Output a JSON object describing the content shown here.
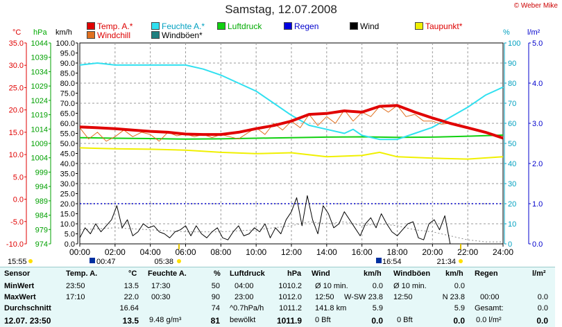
{
  "title": "Samstag, 12.07.2008",
  "copyright": "© Weber Mike",
  "legend": [
    {
      "label": "Temp. A.*",
      "color": "#e00000",
      "cls": "red-text"
    },
    {
      "label": "Windchill",
      "color": "#e07020",
      "cls": "red-text"
    },
    {
      "label": "Feuchte A.*",
      "color": "#30e0f0",
      "cls": "cyan-text"
    },
    {
      "label": "Windböen*",
      "color": "#208080",
      "cls": ""
    },
    {
      "label": "Luftdruck",
      "color": "#10d010",
      "cls": "green-text"
    },
    {
      "label": "Regen",
      "color": "#0000e0",
      "cls": "blue-text"
    },
    {
      "label": "Wind",
      "color": "#000000",
      "cls": ""
    },
    {
      "label": "Taupunkt*",
      "color": "#f0f000",
      "cls": "red-text"
    }
  ],
  "units": {
    "temp": "°C",
    "press": "hPa",
    "wind": "km/h",
    "hum": "%",
    "rain": "l/m²"
  },
  "chart_data": {
    "type": "line",
    "title": "Samstag, 12.07.2008",
    "x_ticks": [
      "00:00",
      "02:00",
      "04:00",
      "06:00",
      "08:00",
      "10:00",
      "12:00",
      "14:00",
      "16:00",
      "18:00",
      "20:00",
      "22:00",
      "24:00"
    ],
    "axes": {
      "temp": {
        "min": -10,
        "max": 35,
        "ticks": [
          "35.0",
          "30.0",
          "25.0",
          "20.0",
          "15.0",
          "10.0",
          "5.0",
          "0.0",
          "-5.0",
          "-10.0"
        ]
      },
      "press": {
        "min": 974,
        "max": 1044,
        "ticks": [
          "1044",
          "1039",
          "1034",
          "1029",
          "1024",
          "1019",
          "1014",
          "1009",
          "1004",
          "999",
          "994",
          "989",
          "984",
          "979",
          "974"
        ]
      },
      "wind": {
        "min": 0,
        "max": 100,
        "ticks": [
          "100.0",
          "95.0",
          "90.0",
          "85.0",
          "80.0",
          "75.0",
          "70.0",
          "65.0",
          "60.0",
          "55.0",
          "50.0",
          "45.0",
          "40.0",
          "35.0",
          "30.0",
          "25.0",
          "20.0",
          "15.0",
          "10.0",
          "5.0",
          "0.0"
        ]
      },
      "hum": {
        "min": 0,
        "max": 100,
        "ticks": [
          "100",
          "90",
          "80",
          "70",
          "60",
          "50",
          "40",
          "30",
          "20",
          "10",
          "0"
        ]
      },
      "rain": {
        "min": 0,
        "max": 5,
        "ticks": [
          "5.0",
          "4.0",
          "3.0",
          "2.0",
          "1.0",
          "0.0"
        ]
      }
    },
    "series": [
      {
        "name": "Temp. A.*",
        "axis": "temp",
        "color": "#e00000",
        "width": 4,
        "x": [
          0,
          1,
          2,
          3,
          4,
          5,
          6,
          7,
          8,
          9,
          10,
          11,
          12,
          13,
          14,
          15,
          16,
          17,
          18,
          19,
          20,
          21,
          22,
          23,
          24
        ],
        "y": [
          16.2,
          16.0,
          15.8,
          15.5,
          15.2,
          15.0,
          14.6,
          14.5,
          14.5,
          15.0,
          15.8,
          16.5,
          17.5,
          19.0,
          19.2,
          19.8,
          19.5,
          20.8,
          21.0,
          19.5,
          18.2,
          17.0,
          16.0,
          15.0,
          13.7
        ]
      },
      {
        "name": "Windchill",
        "axis": "temp",
        "color": "#e07020",
        "width": 1,
        "x": [
          0,
          0.5,
          1,
          1.5,
          2,
          2.5,
          3,
          3.5,
          4,
          4.5,
          5,
          5.5,
          6,
          6.5,
          7,
          7.5,
          8,
          8.5,
          9,
          9.5,
          10,
          10.5,
          11,
          11.5,
          12,
          12.5,
          13,
          13.5,
          14,
          14.5,
          15,
          15.5,
          16,
          16.5,
          17,
          17.5,
          18,
          18.5,
          19,
          19.5,
          20,
          20.5,
          21,
          21.5,
          22,
          22.5,
          23,
          23.5,
          24
        ],
        "y": [
          16,
          13.5,
          15,
          13,
          14,
          15.5,
          14,
          15,
          14.5,
          13,
          15,
          14.2,
          14.6,
          14,
          14.5,
          13.8,
          14.5,
          14,
          13.5,
          14.8,
          16,
          14.5,
          17,
          15.5,
          17.5,
          16,
          19,
          16.5,
          18.5,
          17,
          20,
          17.5,
          19.5,
          18.5,
          20.8,
          19.5,
          21,
          18.5,
          19,
          17.5,
          17.5,
          16.8,
          17,
          16.5,
          16,
          15.5,
          15,
          14.5,
          13.7
        ]
      },
      {
        "name": "Feuchte A.*",
        "axis": "hum",
        "color": "#30e0f0",
        "width": 2,
        "x": [
          0,
          1,
          2,
          3,
          4,
          5,
          6,
          7,
          8,
          9,
          10,
          11,
          12,
          13,
          14,
          15,
          15.5,
          16,
          17,
          18,
          19,
          20,
          21,
          22,
          23,
          24
        ],
        "y": [
          89,
          90,
          89,
          89,
          89,
          89,
          89,
          87,
          84,
          80,
          76,
          70,
          64,
          59,
          57,
          55,
          57,
          54,
          52,
          52,
          55,
          58,
          63,
          68,
          74,
          78
        ]
      },
      {
        "name": "Luftdruck",
        "axis": "press",
        "color": "#10d010",
        "width": 2,
        "x": [
          0,
          2,
          4,
          6,
          8,
          10,
          12,
          14,
          16,
          18,
          20,
          22,
          24
        ],
        "y": [
          1011,
          1010.8,
          1010.7,
          1010.5,
          1010.6,
          1010.8,
          1011,
          1011.2,
          1011.3,
          1011.1,
          1011.2,
          1011.5,
          1011.9
        ]
      },
      {
        "name": "Taupunkt*",
        "axis": "temp",
        "color": "#f0f000",
        "width": 2,
        "x": [
          0,
          2,
          4,
          6,
          8,
          10,
          12,
          14,
          16,
          17,
          18,
          20,
          22,
          24
        ],
        "y": [
          11.5,
          11.3,
          11.2,
          11.0,
          10.5,
          10.2,
          10.4,
          9.5,
          9.8,
          10.5,
          9.5,
          9.2,
          9.0,
          9.5
        ]
      },
      {
        "name": "Wind",
        "axis": "wind",
        "color": "#000000",
        "width": 1,
        "x": [
          0,
          0.3,
          0.6,
          0.9,
          1.2,
          1.5,
          1.8,
          2.1,
          2.4,
          2.7,
          3,
          3.3,
          3.6,
          3.9,
          4.2,
          4.5,
          4.8,
          5.1,
          5.4,
          5.7,
          6,
          6.3,
          6.6,
          6.9,
          7.2,
          7.5,
          7.8,
          8.1,
          8.4,
          8.7,
          9,
          9.3,
          9.6,
          9.9,
          10.2,
          10.5,
          10.8,
          11.1,
          11.4,
          11.7,
          12,
          12.3,
          12.6,
          12.9,
          13.2,
          13.5,
          13.8,
          14.1,
          14.4,
          14.7,
          15,
          15.3,
          15.6,
          15.9,
          16.2,
          16.5,
          16.8,
          17.1,
          17.4,
          17.7,
          18,
          18.3,
          18.6,
          18.9,
          19.2,
          19.5,
          19.8,
          20.1,
          20.4,
          20.7,
          21,
          22,
          23,
          24
        ],
        "y": [
          3,
          8,
          5,
          10,
          6,
          9,
          12,
          19,
          8,
          12,
          4,
          6,
          10,
          8,
          9,
          6,
          5,
          3,
          6,
          7,
          9,
          4,
          9,
          5,
          3,
          6,
          8,
          3,
          2,
          6,
          9,
          4,
          5,
          8,
          6,
          10,
          3,
          8,
          5,
          12,
          16,
          23,
          9,
          24,
          12,
          5,
          19,
          15,
          8,
          10,
          16,
          12,
          8,
          4,
          10,
          13,
          8,
          15,
          10,
          6,
          4,
          7,
          10,
          11,
          3,
          2,
          10,
          12,
          7,
          14,
          0,
          0,
          0,
          0
        ]
      },
      {
        "name": "Windböen*",
        "axis": "wind",
        "color": "#888888",
        "width": 1,
        "dash": true,
        "x": [
          0,
          2,
          4,
          6,
          8,
          10,
          12,
          13,
          14,
          15,
          16,
          17,
          18,
          19,
          20,
          21,
          22,
          23,
          24
        ],
        "y": [
          7,
          8,
          7,
          6,
          6,
          7,
          9,
          11,
          10,
          11,
          9,
          10,
          9,
          7,
          6,
          4,
          2,
          1,
          1
        ]
      }
    ],
    "rain_line": {
      "y": 1.0
    }
  },
  "events": {
    "sunrise_label": "05:38",
    "sunset_label": "21:34",
    "moon_rise": "00:47",
    "moon_set": "16:54",
    "left_time": "15:55"
  },
  "table": {
    "headers": [
      "Sensor",
      "Temp. A.",
      "°C",
      "Feuchte A.",
      "%",
      "Luftdruck",
      "hPa",
      "Wind",
      "km/h",
      "Windböen",
      "km/h",
      "Regen",
      "l/m²"
    ],
    "rows": [
      {
        "label": "MinWert",
        "c1": "23:50",
        "c2": "13.5",
        "c3": "17:30",
        "c4": "50",
        "c5": "04:00",
        "c6": "1010.2",
        "c7": "Ø 10 min.",
        "c8": "0.0",
        "c9": "Ø 10 min.",
        "c10": "0.0",
        "c11": "",
        "c12": ""
      },
      {
        "label": "MaxWert",
        "c1": "17:10",
        "c2": "22.0",
        "c3": "00:30",
        "c4": "90",
        "c5": "23:00",
        "c6": "1012.0",
        "c7": "12:50",
        "c7b": "W-SW 23.8",
        "c8": "",
        "c9": "12:50",
        "c9b": "N 23.8",
        "c10": "",
        "c11": "00:00",
        "c12": "0.0"
      },
      {
        "label": "Durchschnitt",
        "c1": "",
        "c2": "16.64",
        "c3": "",
        "c4": "74",
        "c5": "^0.7hPa/h",
        "c6": "1011.2",
        "c7": "141.8 km",
        "c8": "5.9",
        "c9": "",
        "c10": "5.9",
        "c11": "Gesamt:",
        "c12": "0.0"
      },
      {
        "label": "12.07. 23:50",
        "c1": "",
        "c2": "13.5",
        "c3": "9.48 g/m³",
        "c4": "81",
        "c5": "bewölkt",
        "c6": "1011.9",
        "c7": "0 Bft",
        "c8": "0.0",
        "c9": "0 Bft",
        "c10": "0.0",
        "c11": "0.0 l/m²",
        "c12": "0.0"
      }
    ]
  }
}
